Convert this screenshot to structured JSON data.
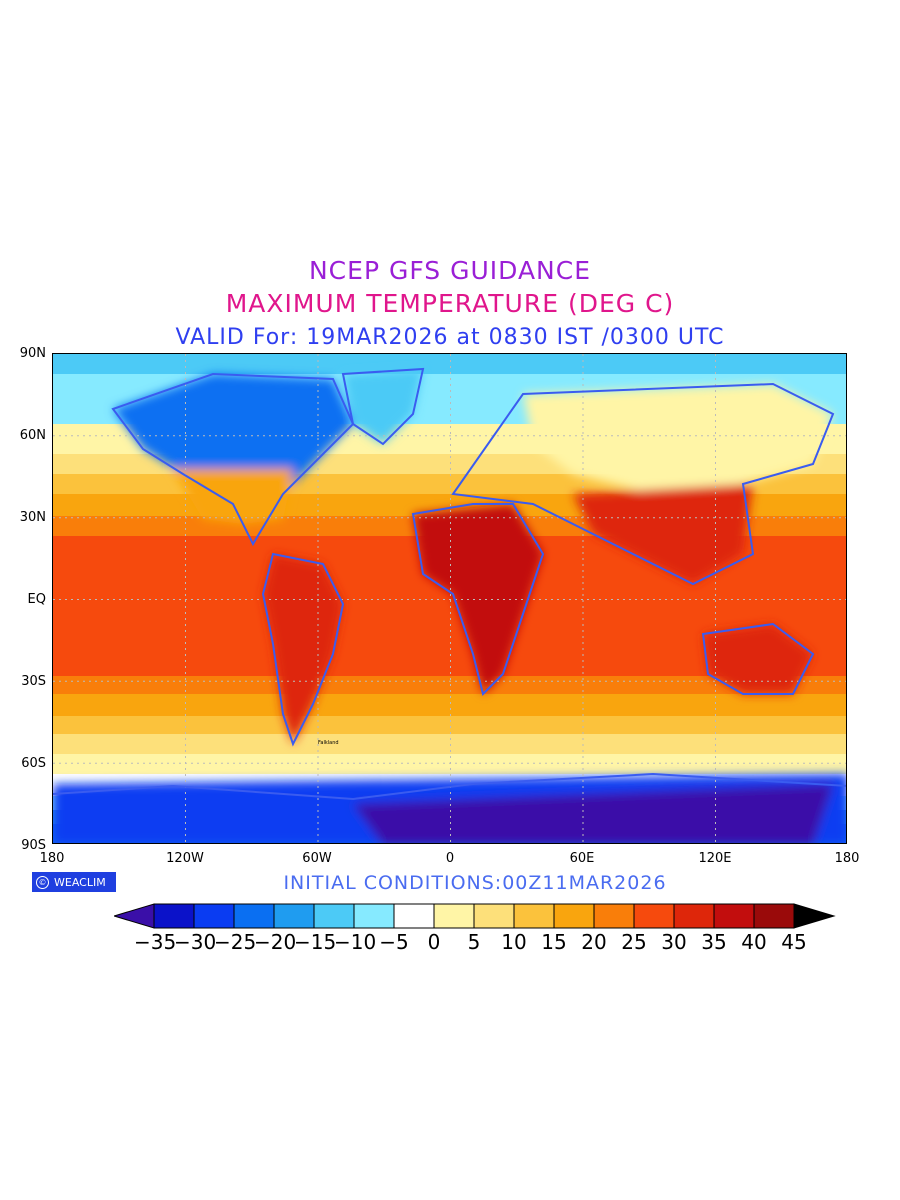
{
  "titles": {
    "line1": "NCEP GFS GUIDANCE",
    "line2": "MAXIMUM TEMPERATURE (DEG C)",
    "line3": "VALID For: 19MAR2026 at 0830 IST /0300 UTC"
  },
  "axes": {
    "y_ticks": [
      "90N",
      "60N",
      "30N",
      "EQ",
      "30S",
      "60S",
      "90S"
    ],
    "x_ticks": [
      "180",
      "120W",
      "60W",
      "0",
      "60E",
      "120E",
      "180"
    ]
  },
  "footer": {
    "badge_text": "WEACLIM",
    "badge_icon": "copyright-icon",
    "initial_conditions": "INITIAL CONDITIONS:00Z11MAR2026"
  },
  "colorbar": {
    "labels": [
      "−35",
      "−30",
      "−25",
      "−20",
      "−15",
      "−10",
      "−5",
      "0",
      "5",
      "10",
      "15",
      "20",
      "25",
      "30",
      "35",
      "40",
      "45"
    ],
    "colors": [
      "#3a0fa8",
      "#0b12c9",
      "#0a3cf2",
      "#0a6ff2",
      "#1f9cf0",
      "#4ccaf6",
      "#86eaff",
      "#ffffff",
      "#fff5a6",
      "#fde07a",
      "#fbc23c",
      "#f9a50e",
      "#f97e0a",
      "#f64a0d",
      "#de260a",
      "#c20d0d",
      "#9a0a0a",
      "#000000"
    ]
  },
  "map_labels": {
    "falkland": "Falkland"
  }
}
